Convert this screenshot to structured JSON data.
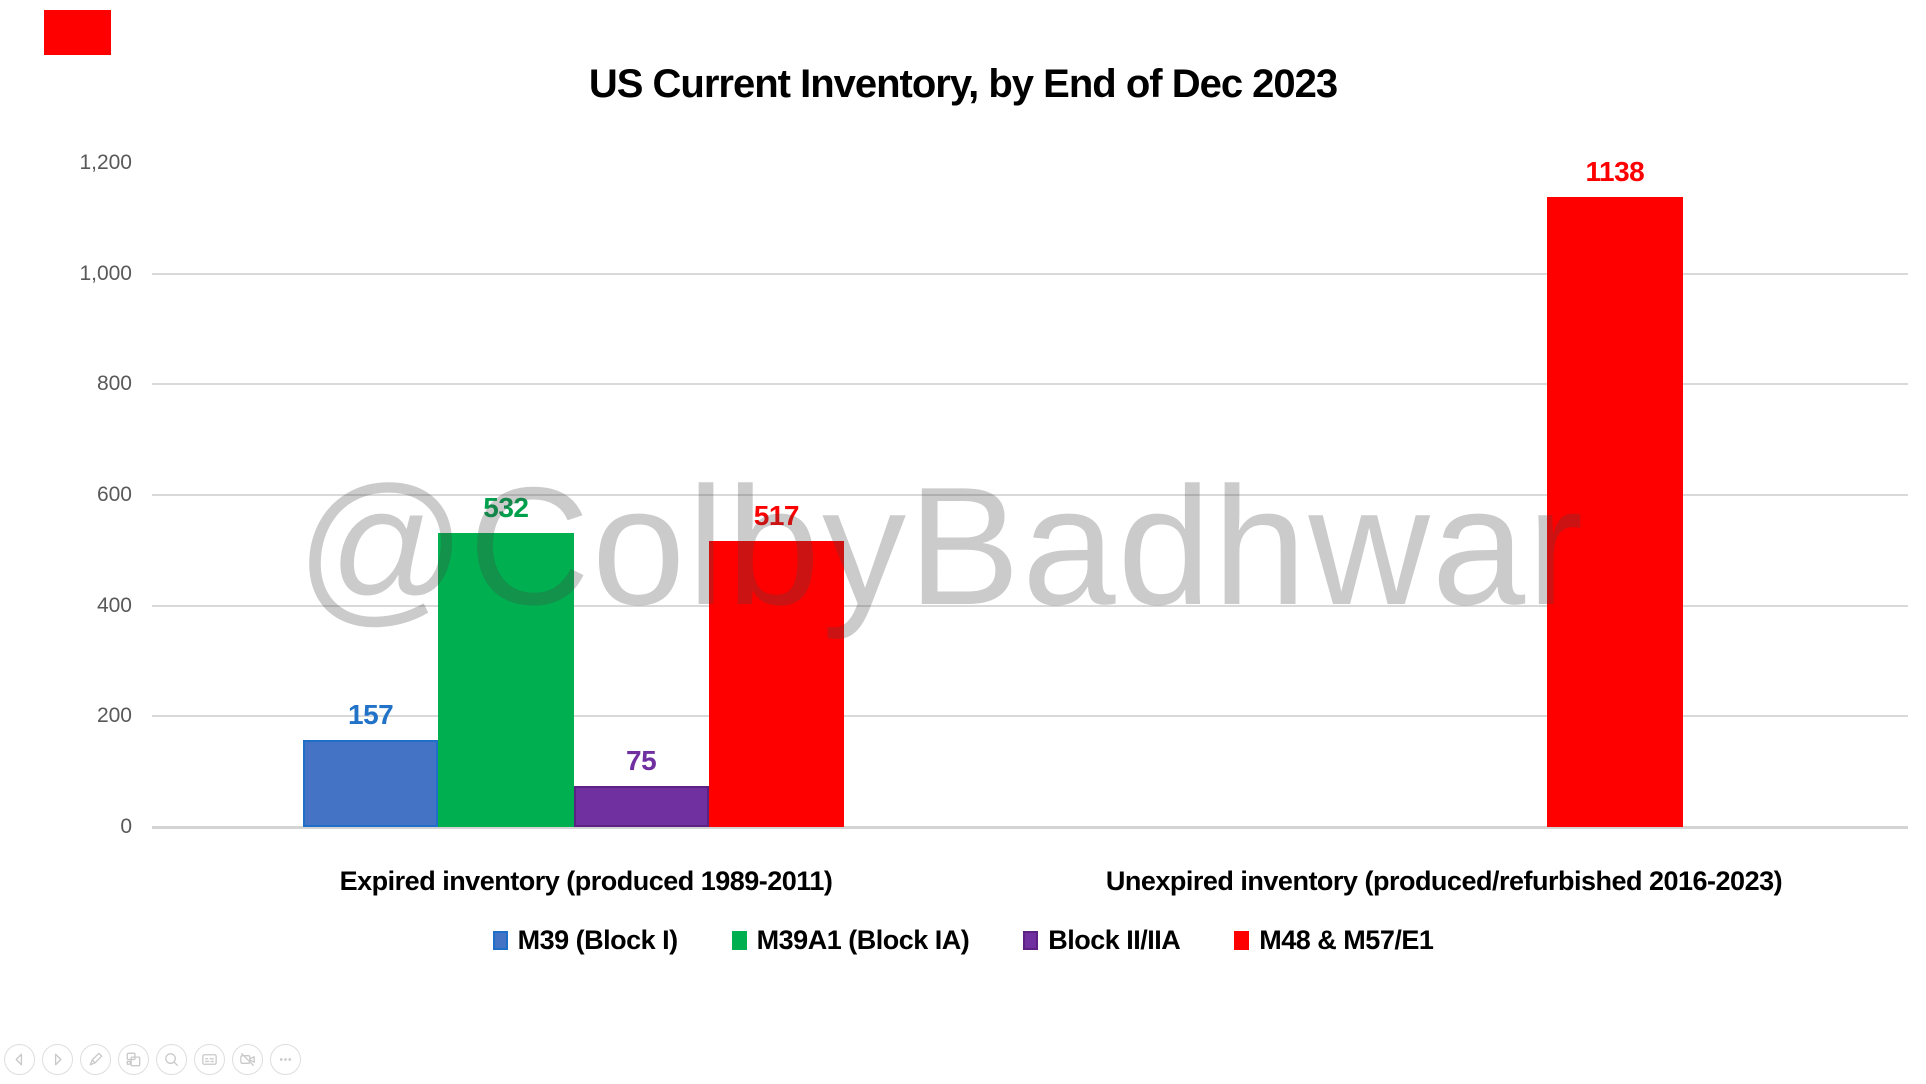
{
  "watermark": {
    "text": "@ColbyBadhwar"
  },
  "decor": {
    "red_swatch_color": "#FE0000"
  },
  "chart_data": {
    "type": "bar",
    "title": "US Current Inventory, by End of Dec 2023",
    "categories": [
      "Expired inventory (produced 1989-2011)",
      "Unexpired inventory (produced/refurbished 2016-2023)"
    ],
    "series": [
      {
        "name": "M39 (Block I)",
        "slug": "m39-block-i",
        "color": "#4472C4",
        "border_color": "#1F6FC8",
        "label_color": "#2272C8",
        "values": [
          157,
          null
        ]
      },
      {
        "name": "M39A1 (Block IA)",
        "slug": "m39a1-block-ia",
        "color": "#00B050",
        "border_color": null,
        "label_color": "#00A14D",
        "values": [
          532,
          null
        ]
      },
      {
        "name": "Block II/IIA",
        "slug": "block-ii-iia",
        "color": "#7030A0",
        "border_color": "#5B2283",
        "label_color": "#7030A0",
        "values": [
          75,
          null
        ]
      },
      {
        "name": "M48 & M57/E1",
        "slug": "m48-m57-e1",
        "color": "#FF0000",
        "border_color": null,
        "label_color": "#FF0000",
        "values": [
          517,
          1138
        ]
      }
    ],
    "ylim": [
      0,
      1200
    ],
    "ytick_interval": 200,
    "yticks": [
      {
        "value": 0,
        "label": "0",
        "gridline": true
      },
      {
        "value": 200,
        "label": "200",
        "gridline": true
      },
      {
        "value": 400,
        "label": "400",
        "gridline": true
      },
      {
        "value": 600,
        "label": "600",
        "gridline": true
      },
      {
        "value": 800,
        "label": "800",
        "gridline": true
      },
      {
        "value": 1000,
        "label": "1,000",
        "gridline": true
      },
      {
        "value": 1200,
        "label": "1,200",
        "gridline": false
      }
    ],
    "grid": "horizontal",
    "legend_position": "bottom",
    "gridline_color": "#D9D9D9",
    "axis_label_color": "#595959",
    "value_labels_shown": true
  },
  "toolbar": {
    "buttons": [
      {
        "name": "previous-slide",
        "icon": "chevron-left-icon"
      },
      {
        "name": "next-slide",
        "icon": "chevron-right-icon"
      },
      {
        "name": "pen-tools",
        "icon": "pen-icon"
      },
      {
        "name": "see-all-slides",
        "icon": "slides-grid-icon"
      },
      {
        "name": "zoom",
        "icon": "magnifier-icon"
      },
      {
        "name": "captions",
        "icon": "captions-icon"
      },
      {
        "name": "camera-off",
        "icon": "camera-off-icon"
      },
      {
        "name": "more-options",
        "icon": "ellipsis-icon"
      }
    ]
  }
}
